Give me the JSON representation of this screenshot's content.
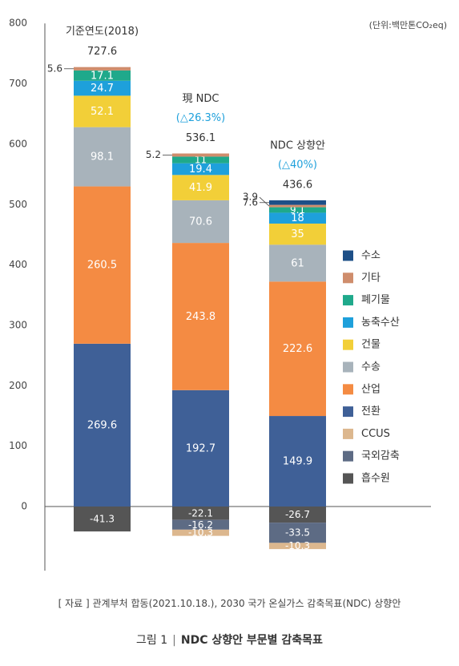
{
  "chart_data": {
    "type": "bar",
    "stacked": true,
    "unit_label": "(단위:백만톤CO₂eq)",
    "ylim": [
      -100,
      800
    ],
    "yticks": [
      0,
      100,
      200,
      300,
      400,
      500,
      600,
      700,
      800
    ],
    "grid": false,
    "legend_position": "right",
    "categories": [
      {
        "name": "기준연도(2018)",
        "sub": "",
        "total": "727.6"
      },
      {
        "name": "現 NDC",
        "sub": "(△26.3%)",
        "total": "536.1"
      },
      {
        "name": "NDC 상향안",
        "sub": "(△40%)",
        "total": "436.6"
      }
    ],
    "positive_series": [
      {
        "name": "전환",
        "color": "#3f6097",
        "values": [
          269.6,
          192.7,
          149.9
        ],
        "labels": [
          "269.6",
          "192.7",
          "149.9"
        ]
      },
      {
        "name": "산업",
        "color": "#f48b43",
        "values": [
          260.5,
          243.8,
          222.6
        ],
        "labels": [
          "260.5",
          "243.8",
          "222.6"
        ]
      },
      {
        "name": "수송",
        "color": "#a8b3bb",
        "values": [
          98.1,
          70.6,
          61
        ],
        "labels": [
          "98.1",
          "70.6",
          "61"
        ]
      },
      {
        "name": "건물",
        "color": "#f2cf38",
        "values": [
          52.1,
          41.9,
          35
        ],
        "labels": [
          "52.1",
          "41.9",
          "35"
        ]
      },
      {
        "name": "농축수산",
        "color": "#1ea0db",
        "values": [
          24.7,
          19.4,
          18
        ],
        "labels": [
          "24.7",
          "19.4",
          "18"
        ]
      },
      {
        "name": "폐기물",
        "color": "#1fa98b",
        "values": [
          17.1,
          11,
          9.1
        ],
        "labels": [
          "17.1",
          "11",
          "9.1"
        ]
      },
      {
        "name": "기타",
        "color": "#cf8d6c",
        "values": [
          5.6,
          5.2,
          3.9
        ],
        "labels": [
          "5.6",
          "5.2",
          "3.9"
        ]
      },
      {
        "name": "수소",
        "color": "#1d4f87",
        "values": [
          0,
          0,
          7.6
        ],
        "labels": [
          "",
          "",
          "7.6"
        ]
      }
    ],
    "negative_series": [
      {
        "name": "흡수원",
        "color": "#555555",
        "values": [
          -41.3,
          -22.1,
          -26.7
        ],
        "labels": [
          "-41.3",
          "-22.1",
          "-26.7"
        ]
      },
      {
        "name": "국외감축",
        "color": "#5d6b84",
        "values": [
          0,
          -16.2,
          -33.5
        ],
        "labels": [
          "",
          "-16.2",
          "-33.5"
        ]
      },
      {
        "name": "CCUS",
        "color": "#dcb78e",
        "values": [
          0,
          -10.3,
          -10.3
        ],
        "labels": [
          "",
          "-10.3",
          "-10.3"
        ]
      }
    ],
    "legend": [
      {
        "name": "수소",
        "color": "#1d4f87"
      },
      {
        "name": "기타",
        "color": "#cf8d6c"
      },
      {
        "name": "폐기물",
        "color": "#1fa98b"
      },
      {
        "name": "농축수산",
        "color": "#1ea0db"
      },
      {
        "name": "건물",
        "color": "#f2cf38"
      },
      {
        "name": "수송",
        "color": "#a8b3bb"
      },
      {
        "name": "산업",
        "color": "#f48b43"
      },
      {
        "name": "전환",
        "color": "#3f6097"
      },
      {
        "name": "CCUS",
        "color": "#dcb78e"
      },
      {
        "name": "국외감축",
        "color": "#5d6b84"
      },
      {
        "name": "흡수원",
        "color": "#555555"
      }
    ]
  },
  "source_text": "[ 자료 ]  관계부처 합동(2021.10.18.), 2030 국가 온실가스 감축목표(NDC) 상향안",
  "figure": {
    "number": "그림 1",
    "title": "NDC 상향안 부문별 감축목표"
  }
}
